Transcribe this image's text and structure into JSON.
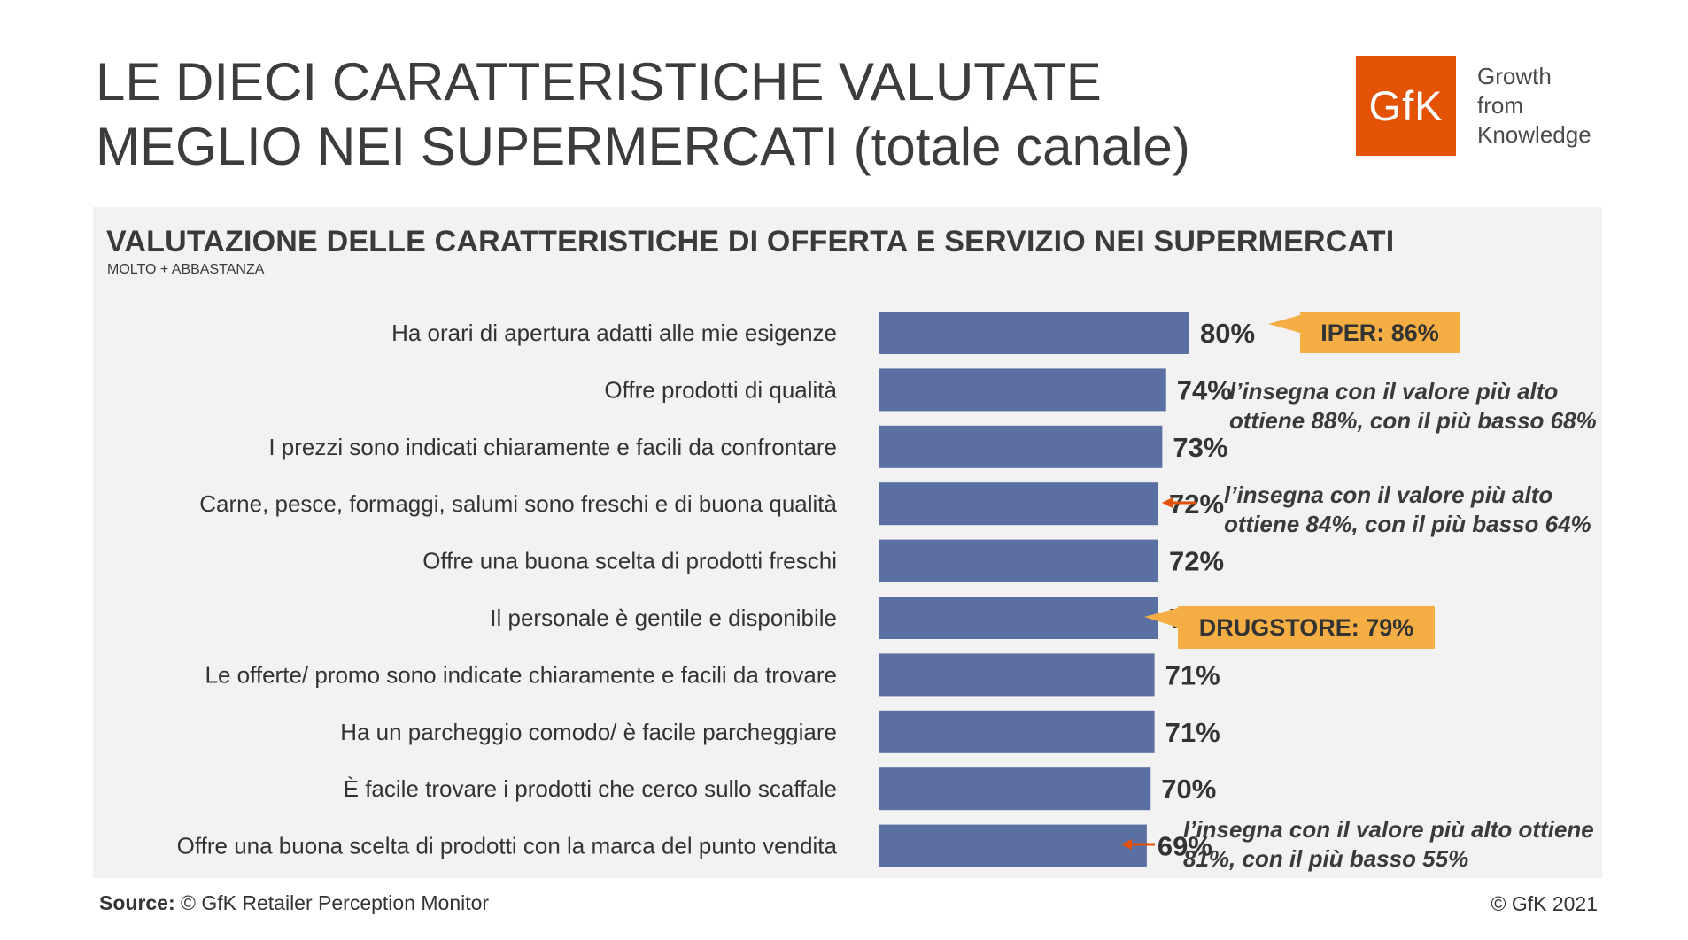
{
  "header": {
    "title_line1": "LE DIECI CARATTERISTICHE VALUTATE",
    "title_line2": "MEGLIO NEI SUPERMERCATI (totale canale)",
    "logo_text": "GfK",
    "tagline": [
      "Growth",
      "from",
      "Knowledge"
    ]
  },
  "panel": {
    "subtitle": "VALUTAZIONE DELLE CARATTERISTICHE DI OFFERTA E SERVIZIO NEI SUPERMERCATI",
    "subsubtitle": "MOLTO + ABBASTANZA"
  },
  "chart_data": {
    "type": "bar",
    "orientation": "horizontal",
    "title": "VALUTAZIONE DELLE CARATTERISTICHE DI OFFERTA E SERVIZIO NEI SUPERMERCATI",
    "categories": [
      "Ha orari di apertura adatti alle mie esigenze",
      "Offre prodotti di qualità",
      "I prezzi sono indicati chiaramente e facili da confrontare",
      "Carne, pesce, formaggi, salumi sono freschi e di buona qualità",
      "Offre una buona scelta di prodotti freschi",
      "Il personale è gentile e disponibile",
      "Le offerte/ promo sono indicate chiaramente e facili da trovare",
      "Ha un parcheggio comodo/ è facile parcheggiare",
      "È facile trovare i prodotti che cerco sullo scaffale",
      "Offre una buona scelta di prodotti con la marca del punto vendita"
    ],
    "values": [
      80,
      74,
      73,
      72,
      72,
      72,
      71,
      71,
      70,
      69
    ],
    "value_labels": [
      "80%",
      "74%",
      "73%",
      "72%",
      "72%",
      "72%",
      "71%",
      "71%",
      "70%",
      "69%"
    ],
    "bar_color": "#5a6fa2",
    "xlim": [
      0,
      100
    ],
    "grid": false
  },
  "callouts": {
    "iper": "IPER: 86%",
    "drugstore": "DRUGSTORE:  79%",
    "color": "#f4ae43"
  },
  "notes": {
    "note1": [
      "l’insegna con il valore più alto",
      "ottiene 88%, con il più basso 68%"
    ],
    "note2": [
      "l’insegna con il valore più alto",
      "ottiene 84%, con il più basso 64%"
    ],
    "note3": [
      "l’insegna con il valore più alto ottiene",
      "81%, con il più basso 55%"
    ],
    "arrow_color": "#e35205"
  },
  "footer": {
    "source_label": "Source:",
    "source_text": " © GfK Retailer Perception Monitor",
    "copyright": "© GfK 2021"
  }
}
